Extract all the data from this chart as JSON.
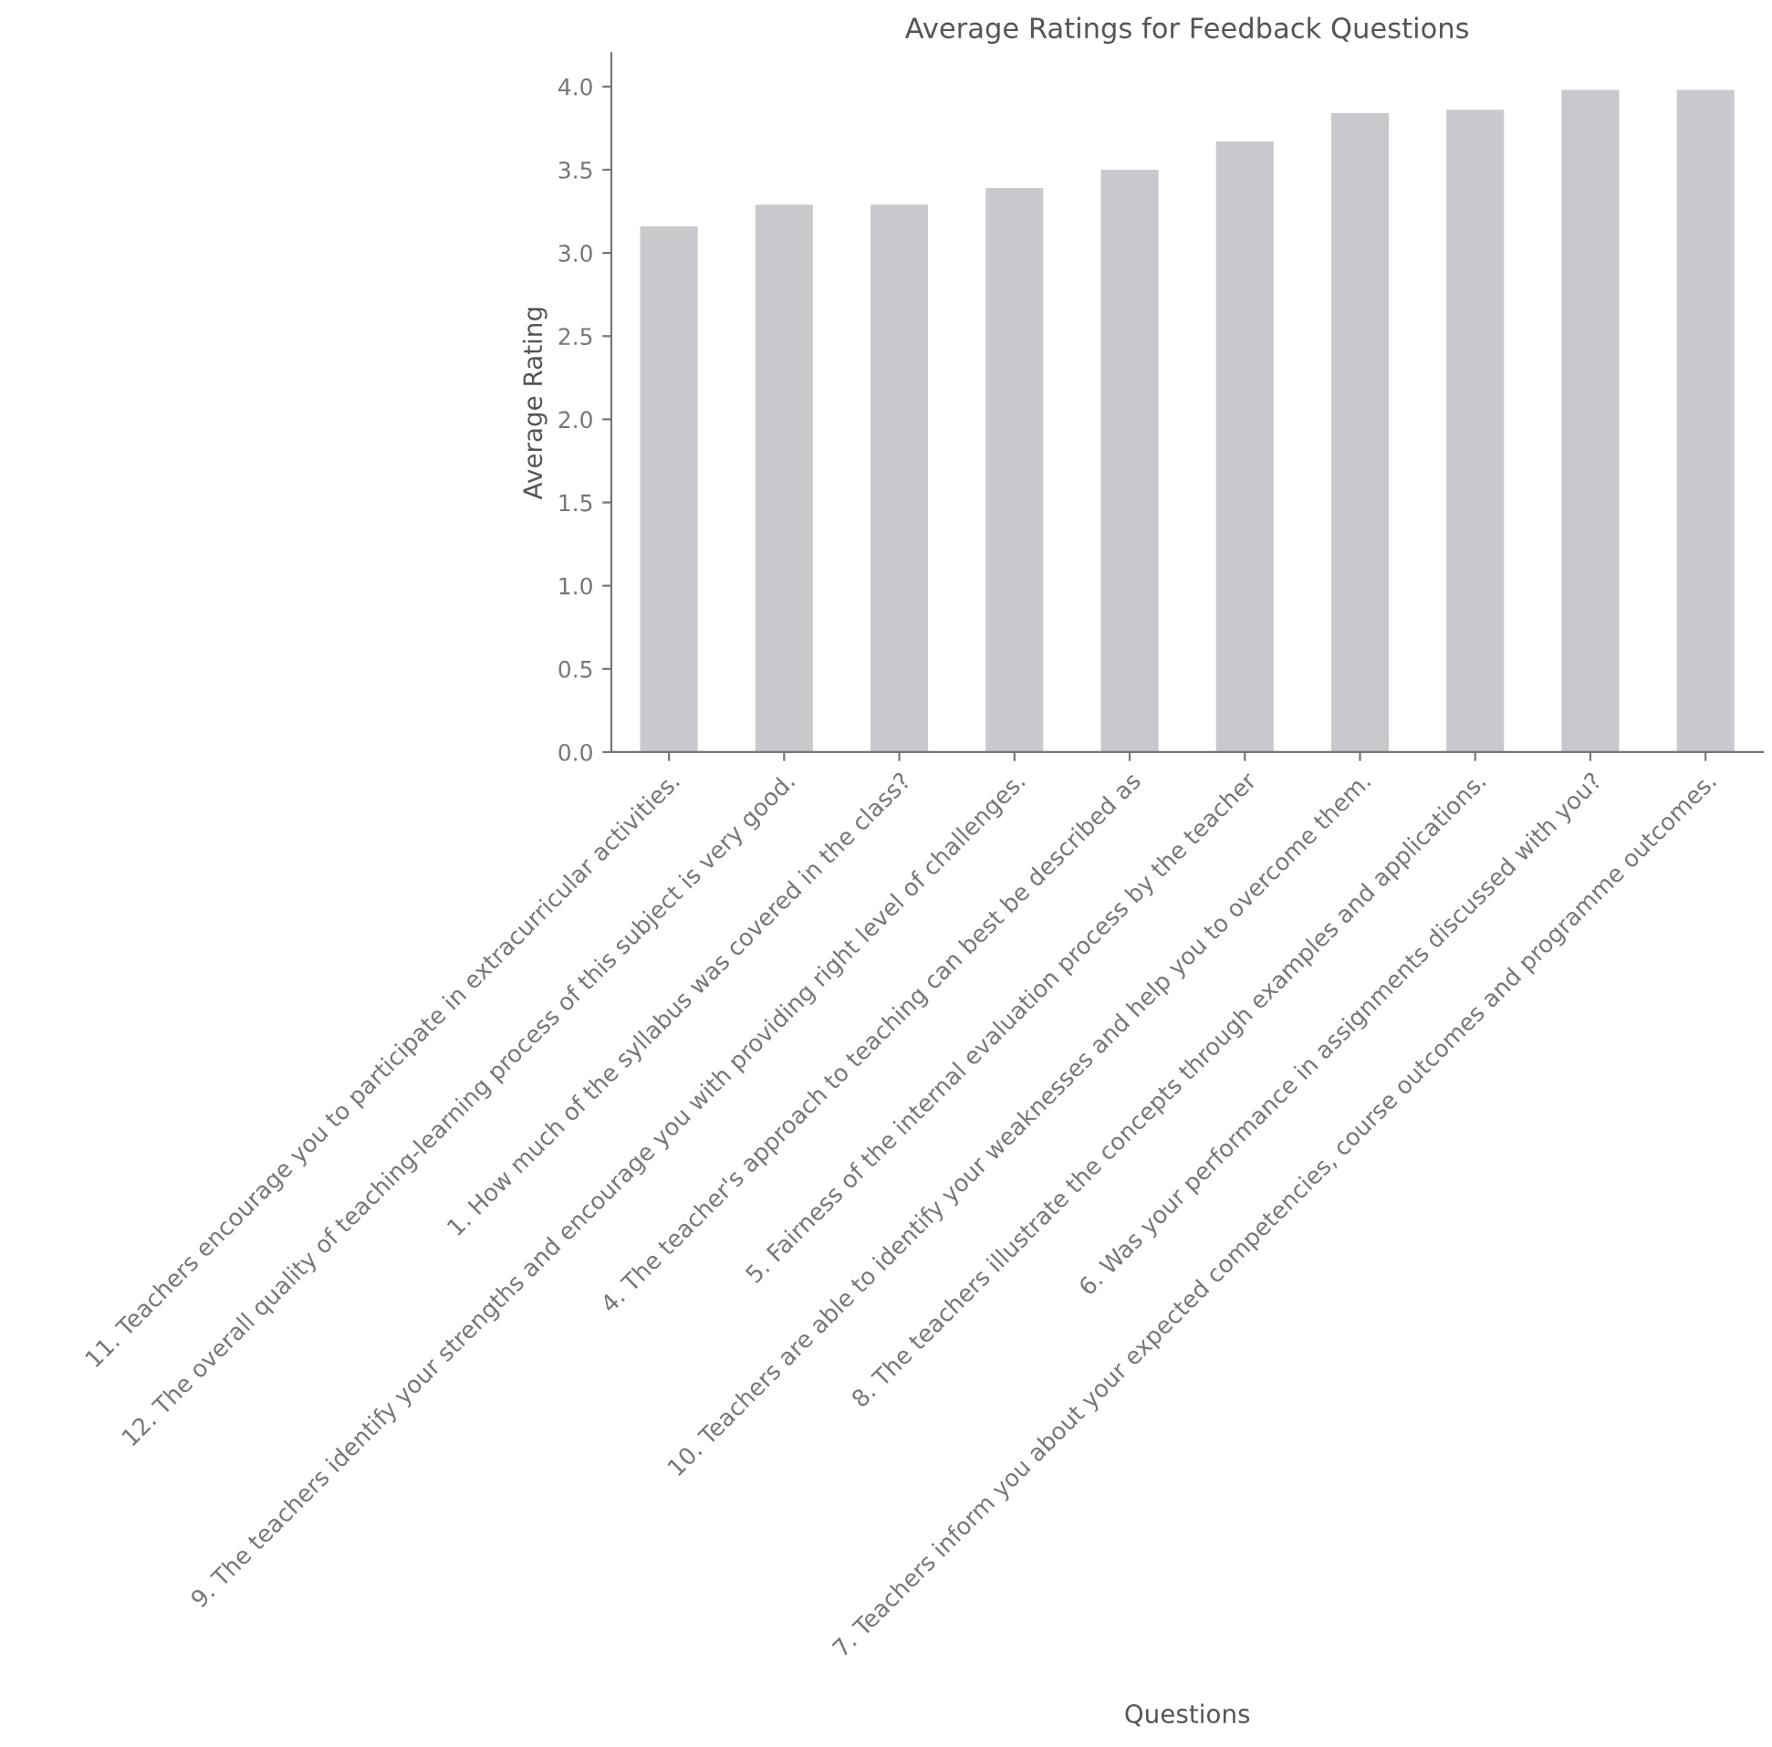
{
  "chart_data": {
    "type": "bar",
    "title": "Average Ratings for Feedback Questions",
    "xlabel": "Questions",
    "ylabel": "Average Rating",
    "categories": [
      "11. Teachers encourage you to participate in extracurricular activities.",
      "12. The overall quality of teaching-learning process of this subject is very good.",
      "1. How much of the syllabus was covered in the class?",
      "9. The teachers identify your strengths and encourage you with providing right level of challenges.",
      "4. The teacher's approach to teaching can best be described as",
      "5. Fairness of the internal evaluation process by the teacher",
      "10. Teachers are able to identify your weaknesses and help you to overcome them.",
      "8. The teachers illustrate the concepts through examples and applications.",
      "6. Was your performance in assignments discussed with you?",
      "7. Teachers inform you about your expected competencies, course outcomes and programme outcomes."
    ],
    "values": [
      3.16,
      3.29,
      3.29,
      3.39,
      3.5,
      3.67,
      3.84,
      3.86,
      3.98,
      3.98
    ],
    "color": "#c9c9cd",
    "ylim": [
      0,
      4.2
    ],
    "yticks": [
      {
        "value": 0,
        "label": "0.0"
      },
      0.5,
      {
        "value": 1,
        "label": "1.0"
      },
      1.5,
      {
        "value": 2,
        "label": "2.0"
      },
      2.5,
      {
        "value": 3,
        "label": "3.0"
      },
      3.5,
      {
        "value": 4,
        "label": "4.0"
      }
    ],
    "grid": false
  }
}
